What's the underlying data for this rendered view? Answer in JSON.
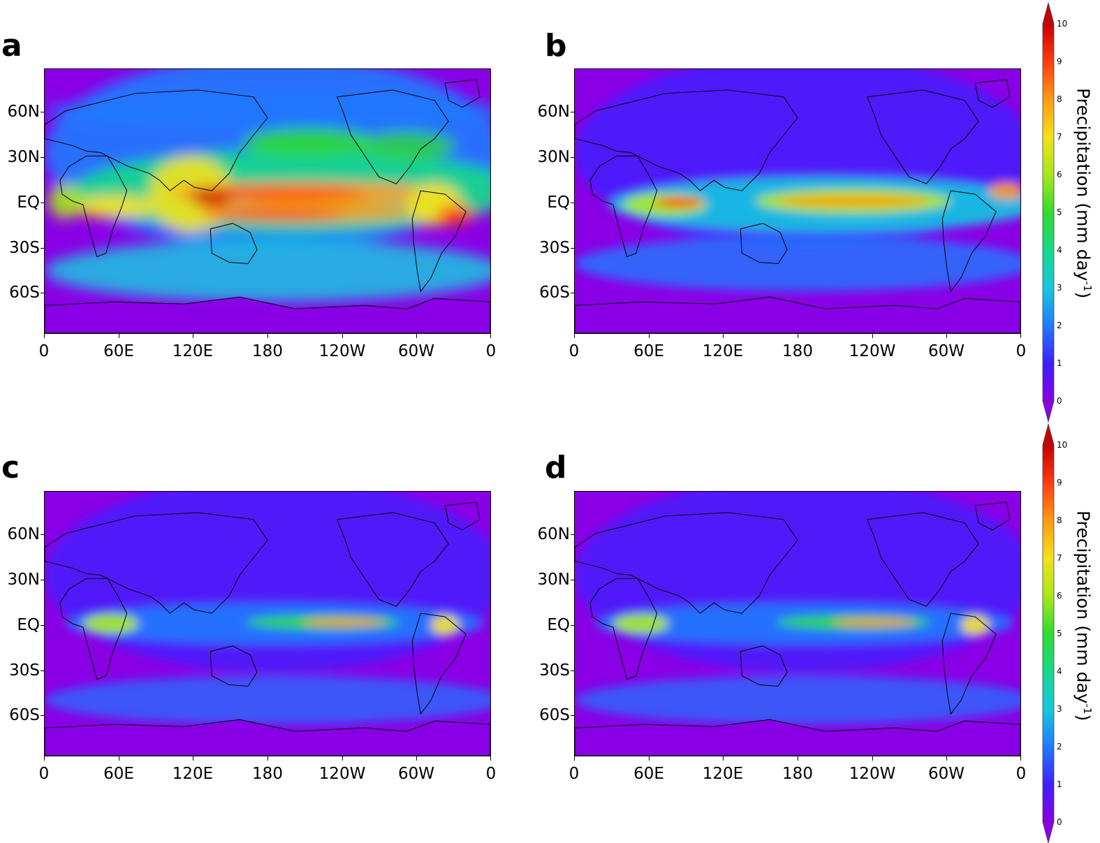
{
  "figure": {
    "panels": [
      {
        "letter": "a",
        "style": "obs"
      },
      {
        "letter": "b",
        "style": "itcz-strong"
      },
      {
        "letter": "c",
        "style": "itcz-weak"
      },
      {
        "letter": "d",
        "style": "itcz-weak"
      }
    ],
    "y_ticks": [
      "60N",
      "30N",
      "EQ",
      "30S",
      "60S"
    ],
    "x_ticks": [
      "0",
      "60E",
      "120E",
      "180",
      "120W",
      "60W",
      "0"
    ],
    "colorbar": {
      "title_main": "Precipitation (mm day",
      "title_sup": "-1",
      "title_end": ")",
      "ticks": [
        "10",
        "9",
        "8",
        "7",
        "6",
        "5",
        "4",
        "3",
        "2",
        "1",
        "0"
      ],
      "colors": [
        "#8a00e6",
        "#3d20ff",
        "#1f7bff",
        "#16c8e0",
        "#18d98a",
        "#2fdc2f",
        "#a8e81a",
        "#f2e11a",
        "#ff9a12",
        "#ff3a10",
        "#c80000"
      ]
    }
  },
  "chart_data": {
    "type": "heatmap",
    "x_ticks": [
      "0",
      "60E",
      "120E",
      "180",
      "120W",
      "60W",
      "0"
    ],
    "y_ticks": [
      "60N",
      "30N",
      "EQ",
      "30S",
      "60S"
    ],
    "colorbar_range": [
      0,
      10
    ],
    "colorbar_title": "Precipitation (mm day-1)"
  }
}
